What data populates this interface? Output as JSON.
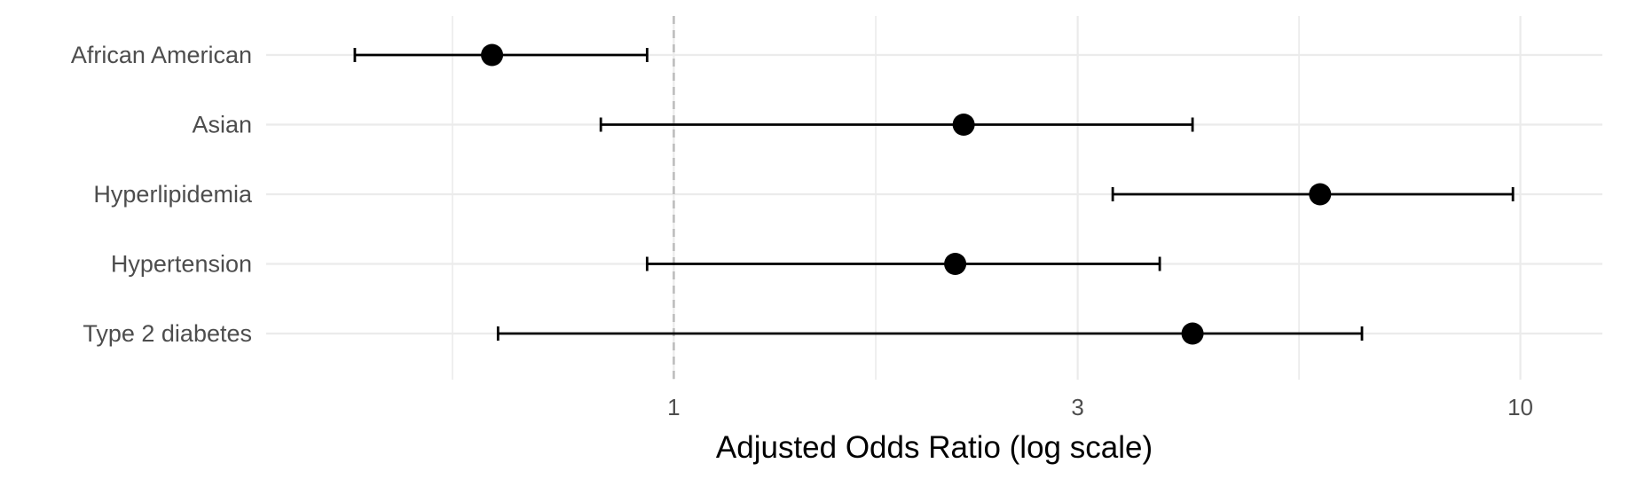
{
  "chart_data": {
    "type": "forest",
    "xlabel": "Adjusted Odds Ratio (log scale)",
    "x_scale": "log",
    "xlim": [
      0.33,
      12.5
    ],
    "x_ticks": [
      1,
      3,
      10
    ],
    "x_tick_labels": [
      "1",
      "3",
      "10"
    ],
    "reference_line": 1,
    "grid": true,
    "categories": [
      "African American",
      "Asian",
      "Hyperlipidemia",
      "Hypertension",
      "Type 2 diabetes"
    ],
    "estimates": [
      0.61,
      2.2,
      5.8,
      2.15,
      4.1
    ],
    "ci_lower": [
      0.42,
      0.82,
      3.3,
      0.93,
      0.62
    ],
    "ci_upper": [
      0.93,
      4.1,
      9.8,
      3.75,
      6.5
    ],
    "colors": {
      "points": "#000000",
      "error_bars": "#000000",
      "reference_line": "#bdbdbd",
      "grid": "#ebebeb"
    }
  }
}
